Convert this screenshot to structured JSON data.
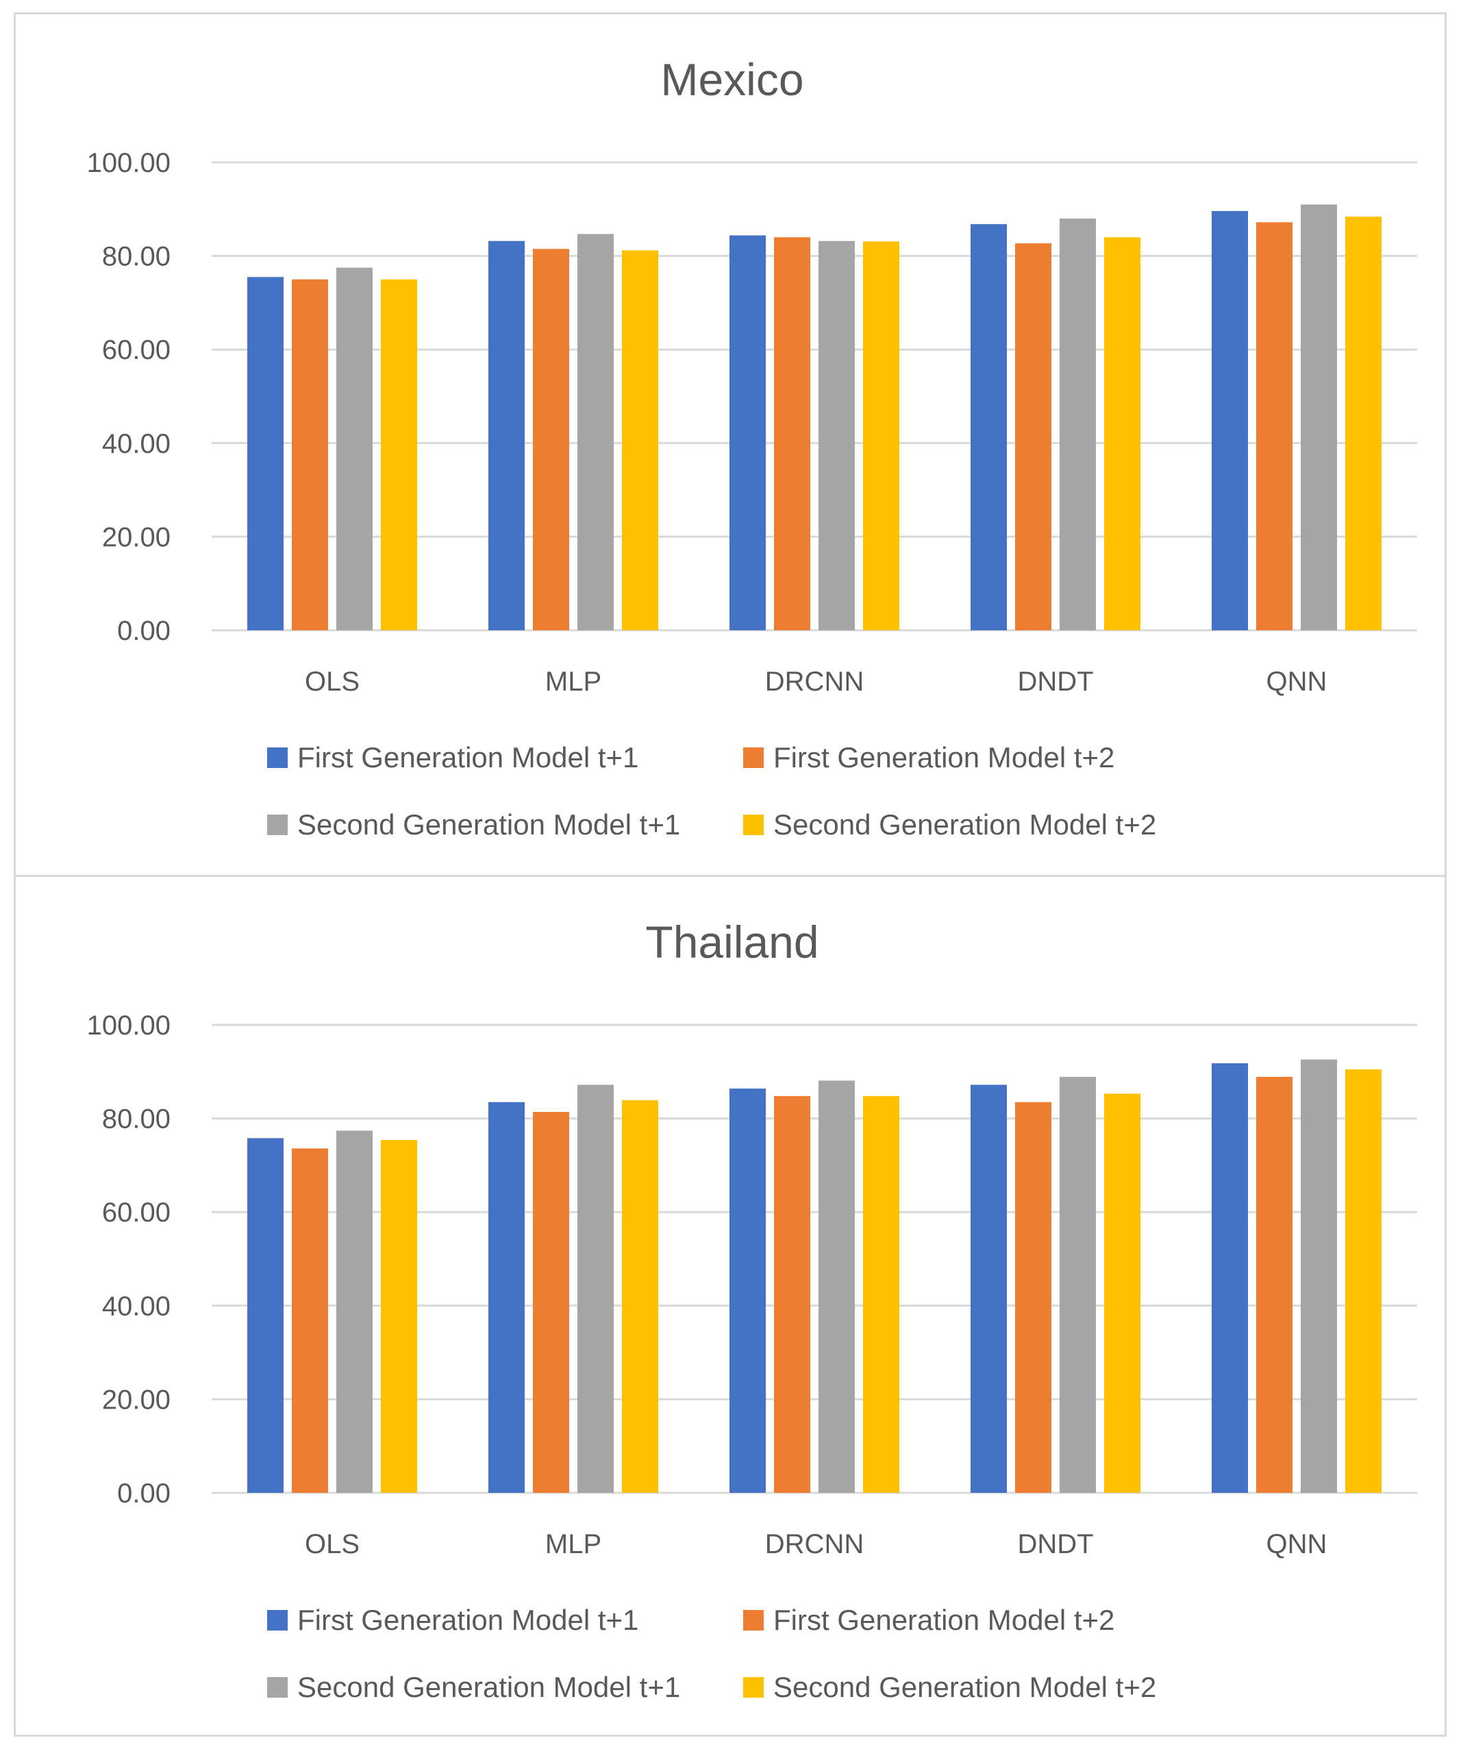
{
  "colors": {
    "first_t1": "#4472c4",
    "first_t2": "#ed7d31",
    "second_t1": "#a5a5a5",
    "second_t2": "#ffc000"
  },
  "chart_data": [
    {
      "type": "bar",
      "title": "Mexico",
      "categories": [
        "OLS",
        "MLP",
        "DRCNN",
        "DNDT",
        "QNN"
      ],
      "ylim": [
        0,
        100
      ],
      "yticks": [
        "0.00",
        "20.00",
        "40.00",
        "60.00",
        "80.00",
        "100.00"
      ],
      "grid": true,
      "legend_position": "bottom",
      "series": [
        {
          "name": "First Generation Model t+1",
          "color_key": "first_t1",
          "values": [
            75.5,
            83.2,
            84.4,
            86.8,
            89.6
          ]
        },
        {
          "name": "First Generation Model t+2",
          "color_key": "first_t2",
          "values": [
            75.0,
            81.5,
            84.0,
            82.7,
            87.2
          ]
        },
        {
          "name": "Second Generation Model t+1",
          "color_key": "second_t1",
          "values": [
            77.5,
            84.7,
            83.2,
            88.0,
            91.0
          ]
        },
        {
          "name": "Second Generation Model t+2",
          "color_key": "second_t2",
          "values": [
            75.0,
            81.2,
            83.1,
            84.0,
            88.4
          ]
        }
      ]
    },
    {
      "type": "bar",
      "title": "Thailand",
      "categories": [
        "OLS",
        "MLP",
        "DRCNN",
        "DNDT",
        "QNN"
      ],
      "ylim": [
        0,
        100
      ],
      "yticks": [
        "0.00",
        "20.00",
        "40.00",
        "60.00",
        "80.00",
        "100.00"
      ],
      "grid": true,
      "legend_position": "bottom",
      "series": [
        {
          "name": "First Generation Model t+1",
          "color_key": "first_t1",
          "values": [
            75.8,
            83.5,
            86.4,
            87.2,
            91.8
          ]
        },
        {
          "name": "First Generation Model t+2",
          "color_key": "first_t2",
          "values": [
            73.6,
            81.4,
            84.8,
            83.5,
            88.9
          ]
        },
        {
          "name": "Second Generation Model t+1",
          "color_key": "second_t1",
          "values": [
            77.4,
            87.2,
            88.1,
            88.9,
            92.6
          ]
        },
        {
          "name": "Second Generation Model t+2",
          "color_key": "second_t2",
          "values": [
            75.4,
            83.9,
            84.8,
            85.3,
            90.5
          ]
        }
      ]
    }
  ]
}
